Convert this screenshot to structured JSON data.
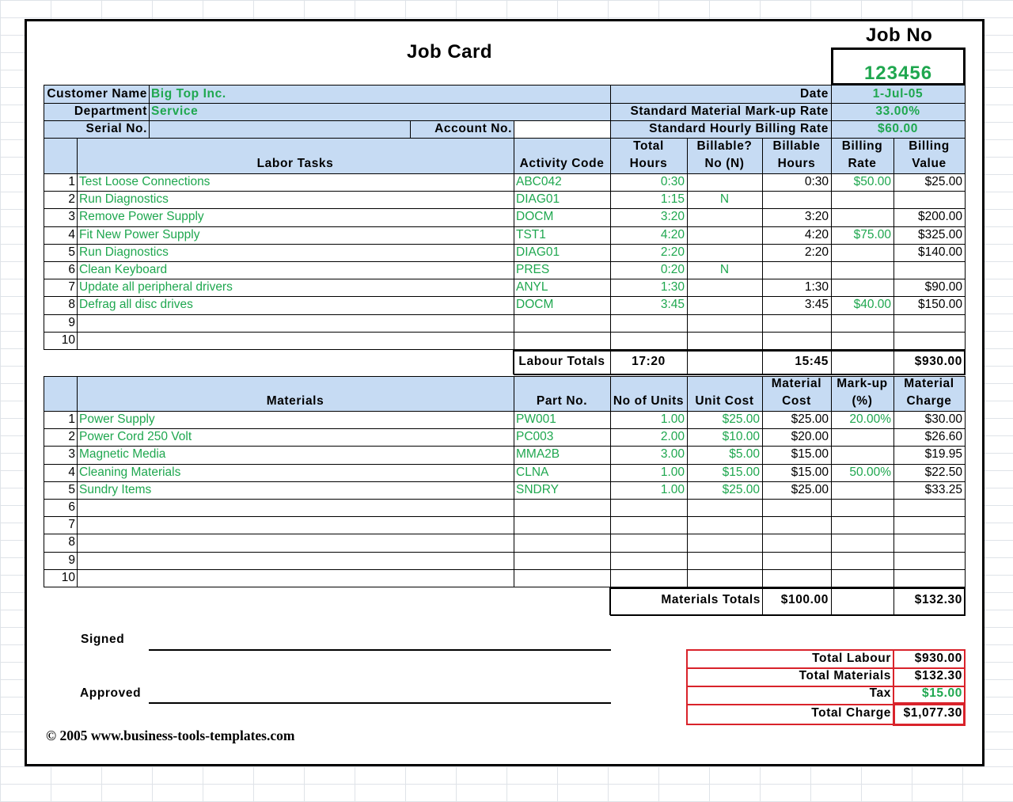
{
  "title": "Job Card",
  "job_no_label": "Job No",
  "job_no": "123456",
  "info": {
    "customer_name_label": "Customer Name",
    "customer_name": "Big Top Inc.",
    "department_label": "Department",
    "department": "Service",
    "serial_no_label": "Serial No.",
    "account_no_label": "Account No.",
    "date_label": "Date",
    "date": "1-Jul-05",
    "markup_rate_label": "Standard Material Mark-up Rate",
    "markup_rate": "33.00%",
    "billing_rate_label": "Standard Hourly Billing Rate",
    "billing_rate": "$60.00"
  },
  "labor_headers": {
    "tasks": "Labor Tasks",
    "activity_code": "Activity Code",
    "total_hours_1": "Total",
    "total_hours_2": "Hours",
    "billable_1": "Billable?",
    "billable_2": "No (N)",
    "billable_hours_1": "Billable",
    "billable_hours_2": "Hours",
    "billing_rate_1": "Billing",
    "billing_rate_2": "Rate",
    "billing_value_1": "Billing",
    "billing_value_2": "Value"
  },
  "labor_rows": [
    {
      "num": "1",
      "task": "Test Loose Connections",
      "code": "ABC042",
      "total": "0:30",
      "billable": "",
      "bhours": "0:30",
      "rate": "$50.00",
      "value": "$25.00"
    },
    {
      "num": "2",
      "task": "Run Diagnostics",
      "code": "DIAG01",
      "total": "1:15",
      "billable": "N",
      "bhours": "",
      "rate": "",
      "value": ""
    },
    {
      "num": "3",
      "task": "Remove Power Supply",
      "code": "DOCM",
      "total": "3:20",
      "billable": "",
      "bhours": "3:20",
      "rate": "",
      "value": "$200.00"
    },
    {
      "num": "4",
      "task": "Fit New Power Supply",
      "code": "TST1",
      "total": "4:20",
      "billable": "",
      "bhours": "4:20",
      "rate": "$75.00",
      "value": "$325.00"
    },
    {
      "num": "5",
      "task": "Run Diagnostics",
      "code": "DIAG01",
      "total": "2:20",
      "billable": "",
      "bhours": "2:20",
      "rate": "",
      "value": "$140.00"
    },
    {
      "num": "6",
      "task": "Clean Keyboard",
      "code": "PRES",
      "total": "0:20",
      "billable": "N",
      "bhours": "",
      "rate": "",
      "value": ""
    },
    {
      "num": "7",
      "task": "Update all peripheral drivers",
      "code": "ANYL",
      "total": "1:30",
      "billable": "",
      "bhours": "1:30",
      "rate": "",
      "value": "$90.00"
    },
    {
      "num": "8",
      "task": "Defrag all disc drives",
      "code": "DOCM",
      "total": "3:45",
      "billable": "",
      "bhours": "3:45",
      "rate": "$40.00",
      "value": "$150.00"
    },
    {
      "num": "9",
      "task": "",
      "code": "",
      "total": "",
      "billable": "",
      "bhours": "",
      "rate": "",
      "value": ""
    },
    {
      "num": "10",
      "task": "",
      "code": "",
      "total": "",
      "billable": "",
      "bhours": "",
      "rate": "",
      "value": ""
    }
  ],
  "labour_totals": {
    "label": "Labour Totals",
    "total": "17:20",
    "billable": "15:45",
    "value": "$930.00"
  },
  "material_headers": {
    "materials": "Materials",
    "part_no": "Part No.",
    "units": "No of Units",
    "unit_cost": "Unit Cost",
    "mat_cost_1": "Material",
    "mat_cost_2": "Cost",
    "markup_1": "Mark-up",
    "markup_2": "(%)",
    "charge_1": "Material",
    "charge_2": "Charge"
  },
  "material_rows": [
    {
      "num": "1",
      "name": "Power Supply",
      "part": "PW001",
      "units": "1.00",
      "ucost": "$25.00",
      "cost": "$25.00",
      "markup": "20.00%",
      "charge": "$30.00"
    },
    {
      "num": "2",
      "name": "Power Cord 250 Volt",
      "part": "PC003",
      "units": "2.00",
      "ucost": "$10.00",
      "cost": "$20.00",
      "markup": "",
      "charge": "$26.60"
    },
    {
      "num": "3",
      "name": "Magnetic Media",
      "part": "MMA2B",
      "units": "3.00",
      "ucost": "$5.00",
      "cost": "$15.00",
      "markup": "",
      "charge": "$19.95"
    },
    {
      "num": "4",
      "name": "Cleaning Materials",
      "part": "CLNA",
      "units": "1.00",
      "ucost": "$15.00",
      "cost": "$15.00",
      "markup": "50.00%",
      "charge": "$22.50"
    },
    {
      "num": "5",
      "name": "Sundry Items",
      "part": "SNDRY",
      "units": "1.00",
      "ucost": "$25.00",
      "cost": "$25.00",
      "markup": "",
      "charge": "$33.25"
    },
    {
      "num": "6",
      "name": "",
      "part": "",
      "units": "",
      "ucost": "",
      "cost": "",
      "markup": "",
      "charge": ""
    },
    {
      "num": "7",
      "name": "",
      "part": "",
      "units": "",
      "ucost": "",
      "cost": "",
      "markup": "",
      "charge": ""
    },
    {
      "num": "8",
      "name": "",
      "part": "",
      "units": "",
      "ucost": "",
      "cost": "",
      "markup": "",
      "charge": ""
    },
    {
      "num": "9",
      "name": "",
      "part": "",
      "units": "",
      "ucost": "",
      "cost": "",
      "markup": "",
      "charge": ""
    },
    {
      "num": "10",
      "name": "",
      "part": "",
      "units": "",
      "ucost": "",
      "cost": "",
      "markup": "",
      "charge": ""
    }
  ],
  "materials_totals": {
    "label": "Materials Totals",
    "cost": "$100.00",
    "charge": "$132.30"
  },
  "signatures": {
    "signed": "Signed",
    "approved": "Approved"
  },
  "summary": {
    "total_labour_label": "Total Labour",
    "total_labour": "$930.00",
    "total_materials_label": "Total Materials",
    "total_materials": "$132.30",
    "tax_label": "Tax",
    "tax": "$15.00",
    "total_charge_label": "Total Charge",
    "total_charge": "$1,077.30"
  },
  "copyright": "© 2005 www.business-tools-templates.com",
  "colors": {
    "accent_green": "#1fa74f",
    "header_blue": "#c6dbf3",
    "summary_red": "#d9232b"
  }
}
